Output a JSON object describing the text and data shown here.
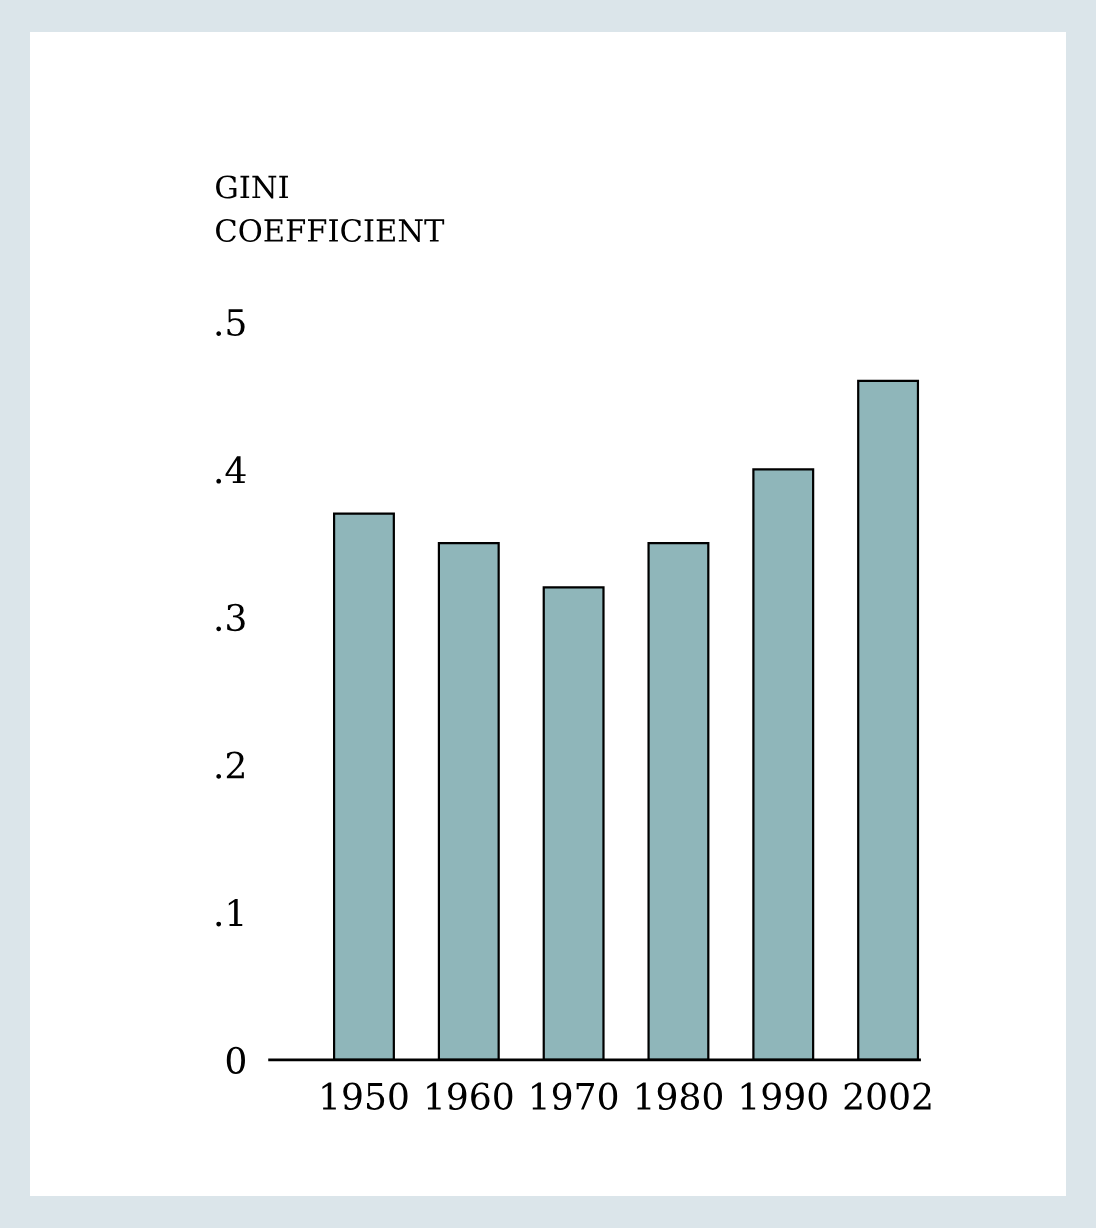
{
  "chart_data": {
    "type": "bar",
    "ylabel": "GINI\nCOEFFICIENT",
    "categories": [
      "1950",
      "1960",
      "1970",
      "1980",
      "1990",
      "2002"
    ],
    "values": [
      0.37,
      0.35,
      0.32,
      0.35,
      0.4,
      0.46
    ],
    "color": "#8fb6ba",
    "ylim": [
      0,
      0.5
    ],
    "yticks": [
      0,
      {
        "value": 0.1,
        "label": ".1"
      },
      {
        "value": 0.2,
        "label": ".2"
      },
      {
        "value": 0.3,
        "label": ".3"
      },
      {
        "value": 0.4,
        "label": ".4"
      },
      {
        "value": 0.5,
        "label": ".5"
      }
    ],
    "grid": false,
    "legend": false
  }
}
